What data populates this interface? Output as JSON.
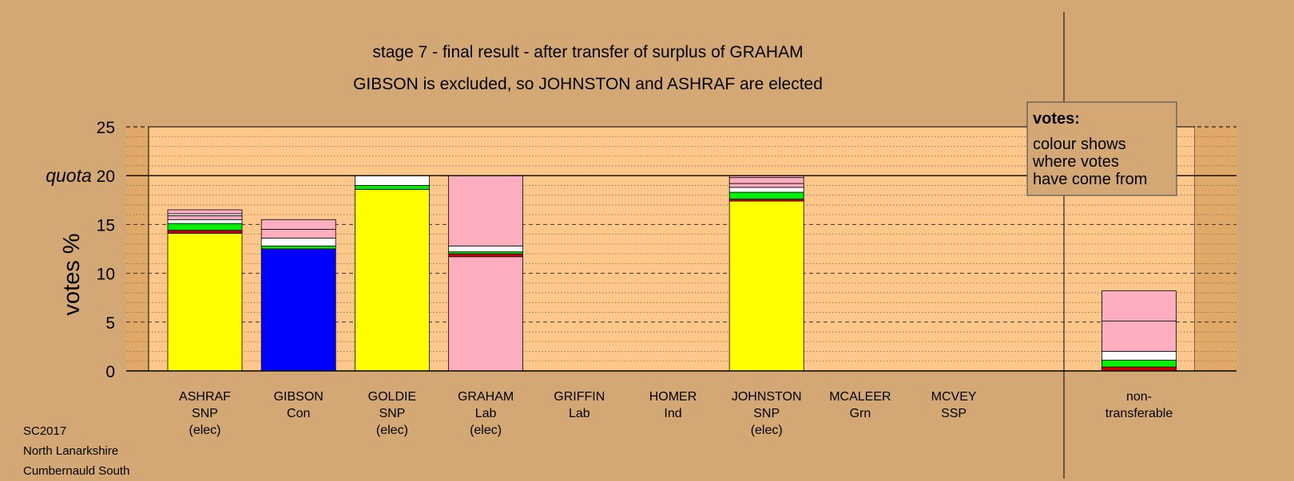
{
  "footer": {
    "line1": "SC2017",
    "line2": "North Lanarkshire",
    "line3": "Cumbernauld South"
  },
  "chart_data": {
    "type": "bar",
    "stacked": true,
    "title": "stage 7 - final result - after transfer of surplus of GRAHAM",
    "subtitle": "GIBSON is excluded, so JOHNSTON and ASHRAF are elected",
    "ylabel": "votes %",
    "ylim": [
      0,
      25
    ],
    "yticks": [
      0,
      5,
      10,
      15,
      20,
      25
    ],
    "quota": 20,
    "quota_label": "quota",
    "legend": {
      "title": "votes:",
      "lines": [
        "colour shows",
        "where votes",
        "have come from"
      ],
      "position": "top-right"
    },
    "colors": {
      "SNP": "#ffff00",
      "Con": "#0000ff",
      "Lab": "#ffaec0",
      "Ind": "#ffffff",
      "Grn": "#00ee00",
      "SSP": "#cc0000"
    },
    "candidates": [
      {
        "name": "ASHRAF",
        "party": "SNP",
        "status": "(elec)",
        "segments": [
          {
            "source": "SNP",
            "value": 14.1
          },
          {
            "source": "SSP",
            "value": 0.3
          },
          {
            "source": "Grn",
            "value": 0.7
          },
          {
            "source": "Ind",
            "value": 0.4
          },
          {
            "source": "Lab",
            "value": 0.4
          },
          {
            "source": "Ind",
            "value": 0.2
          },
          {
            "source": "Lab",
            "value": 0.4
          }
        ]
      },
      {
        "name": "GIBSON",
        "party": "Con",
        "status": "",
        "segments": [
          {
            "source": "Con",
            "value": 12.5
          },
          {
            "source": "Grn",
            "value": 0.3
          },
          {
            "source": "Ind",
            "value": 0.8
          },
          {
            "source": "Lab",
            "value": 0.9
          },
          {
            "source": "Lab",
            "value": 1.0
          }
        ]
      },
      {
        "name": "GOLDIE",
        "party": "SNP",
        "status": "(elec)",
        "segments": [
          {
            "source": "SNP",
            "value": 18.6
          },
          {
            "source": "Grn",
            "value": 0.4
          },
          {
            "source": "Ind",
            "value": 1.0
          }
        ]
      },
      {
        "name": "GRAHAM",
        "party": "Lab",
        "status": "(elec)",
        "segments": [
          {
            "source": "Lab",
            "value": 11.7
          },
          {
            "source": "SSP",
            "value": 0.3
          },
          {
            "source": "Grn",
            "value": 0.2
          },
          {
            "source": "Ind",
            "value": 0.6
          },
          {
            "source": "Lab",
            "value": 7.2
          }
        ]
      },
      {
        "name": "GRIFFIN",
        "party": "Lab",
        "status": "",
        "segments": []
      },
      {
        "name": "HOMER",
        "party": "Ind",
        "status": "",
        "segments": []
      },
      {
        "name": "JOHNSTON",
        "party": "SNP",
        "status": "(elec)",
        "segments": [
          {
            "source": "SNP",
            "value": 17.4
          },
          {
            "source": "SSP",
            "value": 0.2
          },
          {
            "source": "Grn",
            "value": 0.7
          },
          {
            "source": "Ind",
            "value": 0.5
          },
          {
            "source": "Lab",
            "value": 0.4
          },
          {
            "source": "Lab",
            "value": 0.6
          },
          {
            "source": "Lab",
            "value": 0.2
          }
        ]
      },
      {
        "name": "MCALEER",
        "party": "Grn",
        "status": "",
        "segments": []
      },
      {
        "name": "MCVEY",
        "party": "SSP",
        "status": "",
        "segments": []
      }
    ],
    "non_transferable": {
      "label_line1": "non-",
      "label_line2": "transferable",
      "segments": [
        {
          "source": "SSP",
          "value": 0.4
        },
        {
          "source": "Grn",
          "value": 0.7
        },
        {
          "source": "Ind",
          "value": 0.9
        },
        {
          "source": "Lab",
          "value": 3.1
        },
        {
          "source": "Lab",
          "value": 3.1
        }
      ]
    }
  }
}
